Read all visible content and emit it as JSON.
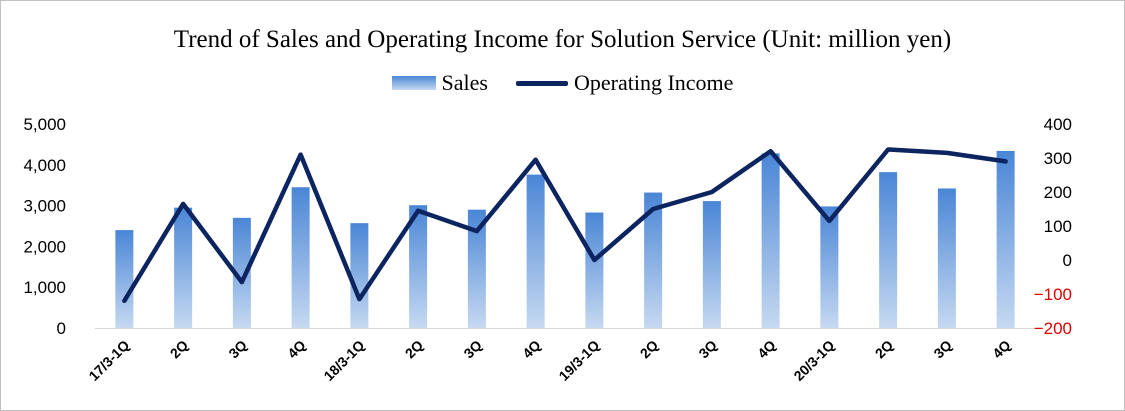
{
  "chart_data": {
    "type": "bar",
    "title": "Trend of Sales and Operating Income for Solution Service (Unit: million yen)",
    "categories": [
      "17/3-1Q",
      "2Q",
      "3Q",
      "4Q",
      "18/3-1Q",
      "2Q",
      "3Q",
      "4Q",
      "19/3-1Q",
      "2Q",
      "3Q",
      "4Q",
      "20/3-1Q",
      "2Q",
      "3Q",
      "4Q"
    ],
    "series": [
      {
        "name": "Sales",
        "type": "bar",
        "axis": "left",
        "values": [
          2400,
          2950,
          2700,
          3450,
          2570,
          3010,
          2900,
          3760,
          2830,
          3320,
          3110,
          4280,
          2980,
          3820,
          3420,
          4340
        ]
      },
      {
        "name": "Operating Income",
        "type": "line",
        "axis": "right",
        "values": [
          -120,
          165,
          -65,
          310,
          -115,
          145,
          85,
          295,
          0,
          150,
          200,
          320,
          115,
          325,
          315,
          290
        ]
      }
    ],
    "yaxis_left": {
      "min": 0,
      "max": 5000,
      "ticks": [
        0,
        1000,
        2000,
        3000,
        4000,
        5000
      ],
      "tick_labels": [
        "0",
        "1,000",
        "2,000",
        "3,000",
        "4,000",
        "5,000"
      ]
    },
    "yaxis_right": {
      "min": -200,
      "max": 400,
      "ticks": [
        -200,
        -100,
        0,
        100,
        200,
        300,
        400
      ],
      "tick_labels": [
        "−200",
        "−100",
        "0",
        "100",
        "200",
        "300",
        "400"
      ],
      "negative_color": "#e00000"
    },
    "grid": false,
    "legend_position": "top-center",
    "colors": {
      "bar_top": "#4a86d6",
      "bar_bottom": "#c6d9f1",
      "line": "#0c2460",
      "axis_text": "#000000"
    }
  }
}
